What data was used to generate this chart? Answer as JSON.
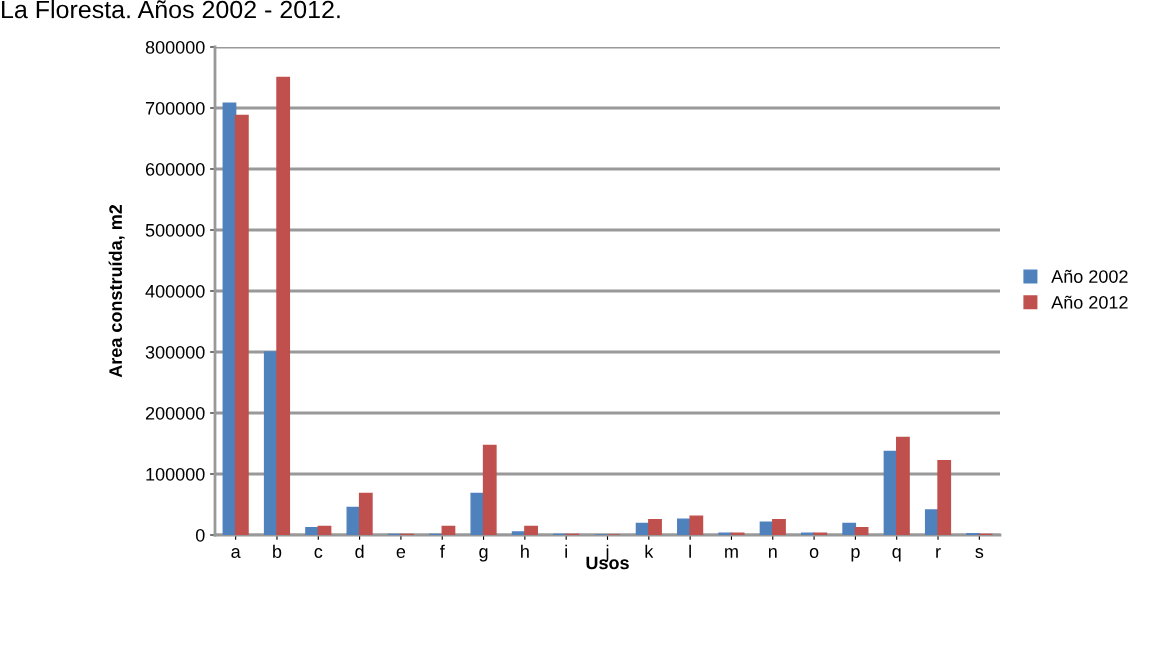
{
  "chart_data": {
    "type": "bar",
    "title": "La Floresta. Años 2002 - 2012.",
    "xlabel": "Usos",
    "ylabel": "Area construída, m2",
    "categories": [
      "a",
      "b",
      "c",
      "d",
      "e",
      "f",
      "g",
      "h",
      "i",
      "j",
      "k",
      "l",
      "m",
      "n",
      "o",
      "p",
      "q",
      "r",
      "s"
    ],
    "series": [
      {
        "name": "Año 2002",
        "color": "#4f81bd",
        "values": [
          708000,
          300000,
          12000,
          45000,
          1000,
          1000,
          68000,
          5000,
          1000,
          0,
          19000,
          26000,
          3000,
          21000,
          3000,
          19000,
          137000,
          41000,
          2000
        ]
      },
      {
        "name": "Año 2012",
        "color": "#c0504d",
        "values": [
          688000,
          750000,
          14000,
          68000,
          1000,
          14000,
          147000,
          14000,
          1000,
          0,
          25000,
          31000,
          3000,
          25000,
          3000,
          12000,
          160000,
          122000,
          1000
        ]
      }
    ],
    "ylim": [
      0,
      800000
    ],
    "yticks": [
      0,
      100000,
      200000,
      300000,
      400000,
      500000,
      600000,
      700000,
      800000
    ],
    "grid": "y",
    "legend": "right"
  }
}
